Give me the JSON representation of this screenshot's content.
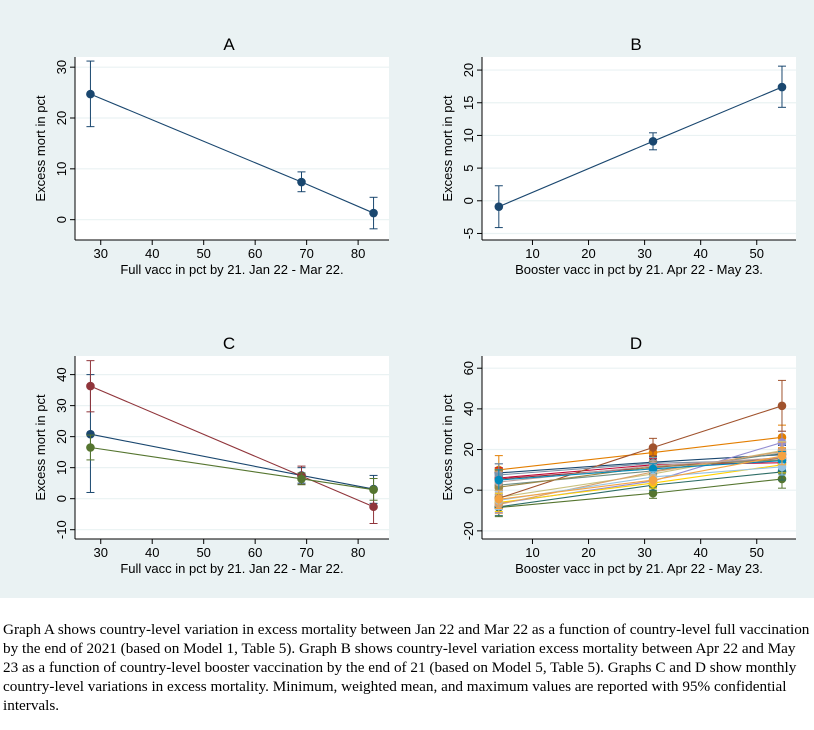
{
  "caption": "Graph A shows country-level variation in excess mortality between Jan 22 and Mar 22 as a function of country-level full vaccination by the end of 2021 (based on Model 1, Table 5). Graph B shows country-level variation excess mortality between Apr 22 and May 23 as a function of country-level booster vaccination by the end of 21 (based on Model 5, Table 5). Graphs C and D show monthly country-level variations in excess mortality. Minimum, weighted mean, and maximum values are reported with 95% confidential intervals.",
  "chart_data": [
    {
      "id": "A",
      "type": "line",
      "title": "A",
      "xlabel": "Full vacc in pct by 21. Jan 22 - Mar 22.",
      "ylabel": "Excess mort in pct",
      "xlim": [
        25,
        86
      ],
      "ylim": [
        -4,
        32
      ],
      "xticks": [
        30,
        40,
        50,
        60,
        70,
        80
      ],
      "yticks": [
        0,
        10,
        20,
        30
      ],
      "grid": true,
      "series": [
        {
          "color": "#1a476f",
          "points": [
            {
              "x": 28,
              "y": 24.7,
              "lo": 18.3,
              "hi": 31.2
            },
            {
              "x": 69,
              "y": 7.4,
              "lo": 5.5,
              "hi": 9.4
            },
            {
              "x": 83,
              "y": 1.3,
              "lo": -1.8,
              "hi": 4.4
            }
          ]
        }
      ]
    },
    {
      "id": "B",
      "type": "line",
      "title": "B",
      "xlabel": "Booster vacc in pct by 21. Apr 22 - May 23.",
      "ylabel": "Excess mort in pct",
      "xlim": [
        1,
        57
      ],
      "ylim": [
        -6,
        22
      ],
      "xticks": [
        10,
        20,
        30,
        40,
        50
      ],
      "yticks": [
        -5,
        0,
        5,
        10,
        15,
        20
      ],
      "grid": true,
      "series": [
        {
          "color": "#1a476f",
          "points": [
            {
              "x": 4,
              "y": -0.9,
              "lo": -4.1,
              "hi": 2.3
            },
            {
              "x": 31.5,
              "y": 9.1,
              "lo": 7.8,
              "hi": 10.4
            },
            {
              "x": 54.5,
              "y": 17.4,
              "lo": 14.3,
              "hi": 20.6
            }
          ]
        }
      ]
    },
    {
      "id": "C",
      "type": "line",
      "title": "C",
      "xlabel": "Full vacc in pct by 21. Jan 22 - Mar 22.",
      "ylabel": "Excess mort in pct",
      "xlim": [
        25,
        86
      ],
      "ylim": [
        -13,
        46
      ],
      "xticks": [
        30,
        40,
        50,
        60,
        70,
        80
      ],
      "yticks": [
        -10,
        0,
        10,
        20,
        30,
        40
      ],
      "grid": true,
      "series": [
        {
          "color": "#1a476f",
          "points": [
            {
              "x": 28,
              "y": 20.8,
              "lo": 2,
              "hi": 40
            },
            {
              "x": 69,
              "y": 7.5,
              "lo": 5,
              "hi": 10
            },
            {
              "x": 83,
              "y": 3.1,
              "lo": -1.5,
              "hi": 7.5
            }
          ]
        },
        {
          "color": "#90353b",
          "points": [
            {
              "x": 28,
              "y": 36.3,
              "lo": 28,
              "hi": 44.5
            },
            {
              "x": 69,
              "y": 7.3,
              "lo": 4.6,
              "hi": 10.5
            },
            {
              "x": 83,
              "y": -2.6,
              "lo": -8,
              "hi": 3
            }
          ]
        },
        {
          "color": "#55752f",
          "points": [
            {
              "x": 28,
              "y": 16.5,
              "lo": 12.5,
              "hi": 20.5
            },
            {
              "x": 69,
              "y": 6.4,
              "lo": 4.5,
              "hi": 8.3
            },
            {
              "x": 83,
              "y": 2.9,
              "lo": -0.5,
              "hi": 6.5
            }
          ]
        }
      ]
    },
    {
      "id": "D",
      "type": "line",
      "title": "D",
      "xlabel": "Booster vacc in pct by 21. Apr 22 - May 23.",
      "ylabel": "Excess mort in pct",
      "xlim": [
        1,
        57
      ],
      "ylim": [
        -24,
        66
      ],
      "xticks": [
        10,
        20,
        30,
        40,
        50
      ],
      "yticks": [
        -20,
        0,
        20,
        40,
        60
      ],
      "grid": true,
      "series": [
        {
          "color": "#1a476f",
          "points": [
            {
              "x": 4,
              "y": 8.5,
              "lo": 4,
              "hi": 13
            },
            {
              "x": 31.5,
              "y": 13.8,
              "lo": 11,
              "hi": 16.5
            },
            {
              "x": 54.5,
              "y": 17.5,
              "lo": 13,
              "hi": 22
            }
          ]
        },
        {
          "color": "#90353b",
          "points": [
            {
              "x": 4,
              "y": 5.5,
              "lo": 0,
              "hi": 11
            },
            {
              "x": 31.5,
              "y": 11.2,
              "lo": 8.5,
              "hi": 14
            },
            {
              "x": 54.5,
              "y": 15.8,
              "lo": 11,
              "hi": 20.5
            }
          ]
        },
        {
          "color": "#55752f",
          "points": [
            {
              "x": 4,
              "y": -8.5,
              "lo": -13,
              "hi": -4
            },
            {
              "x": 31.5,
              "y": -1.5,
              "lo": -4,
              "hi": 1
            },
            {
              "x": 54.5,
              "y": 5.5,
              "lo": 1,
              "hi": 10
            }
          ]
        },
        {
          "color": "#e37e00",
          "points": [
            {
              "x": 4,
              "y": 10,
              "lo": 3,
              "hi": 17
            },
            {
              "x": 31.5,
              "y": 18.5,
              "lo": 15.5,
              "hi": 21.5
            },
            {
              "x": 54.5,
              "y": 26,
              "lo": 20,
              "hi": 32
            }
          ]
        },
        {
          "color": "#6e8e84",
          "points": [
            {
              "x": 4,
              "y": 2.5,
              "lo": -2,
              "hi": 7
            },
            {
              "x": 31.5,
              "y": 9.5,
              "lo": 7,
              "hi": 12
            },
            {
              "x": 54.5,
              "y": 18.2,
              "lo": 14,
              "hi": 22.5
            }
          ]
        },
        {
          "color": "#c10534",
          "points": [
            {
              "x": 4,
              "y": 6,
              "lo": 1,
              "hi": 11
            },
            {
              "x": 31.5,
              "y": 12.5,
              "lo": 9.5,
              "hi": 15.5
            },
            {
              "x": 54.5,
              "y": 13.5,
              "lo": 9,
              "hi": 18
            }
          ]
        },
        {
          "color": "#938dd2",
          "points": [
            {
              "x": 4,
              "y": -6.5,
              "lo": -11,
              "hi": -2
            },
            {
              "x": 31.5,
              "y": 4.5,
              "lo": 2,
              "hi": 7
            },
            {
              "x": 54.5,
              "y": 23.5,
              "lo": 18,
              "hi": 29
            }
          ]
        },
        {
          "color": "#cac27e",
          "points": [
            {
              "x": 4,
              "y": -3.5,
              "lo": -8,
              "hi": 1
            },
            {
              "x": 31.5,
              "y": 8,
              "lo": 5,
              "hi": 11
            },
            {
              "x": 54.5,
              "y": 19.5,
              "lo": 15,
              "hi": 24
            }
          ]
        },
        {
          "color": "#a0522d",
          "points": [
            {
              "x": 4,
              "y": -4,
              "lo": -9,
              "hi": 1
            },
            {
              "x": 31.5,
              "y": 21,
              "lo": 17,
              "hi": 25.5
            },
            {
              "x": 54.5,
              "y": 41.5,
              "lo": 29,
              "hi": 54
            }
          ]
        },
        {
          "color": "#7b92a8",
          "points": [
            {
              "x": 4,
              "y": 7.5,
              "lo": 2,
              "hi": 13
            },
            {
              "x": 31.5,
              "y": 13.2,
              "lo": 10.5,
              "hi": 16
            },
            {
              "x": 54.5,
              "y": 14.8,
              "lo": 10.5,
              "hi": 19
            }
          ]
        },
        {
          "color": "#2d6d66",
          "points": [
            {
              "x": 4,
              "y": -8.2,
              "lo": -12.5,
              "hi": -4
            },
            {
              "x": 31.5,
              "y": 2.5,
              "lo": 0,
              "hi": 5
            },
            {
              "x": 54.5,
              "y": 9,
              "lo": 5,
              "hi": 13
            }
          ]
        },
        {
          "color": "#9c8847",
          "points": [
            {
              "x": 4,
              "y": 1.5,
              "lo": -3,
              "hi": 6
            },
            {
              "x": 31.5,
              "y": 11.5,
              "lo": 9,
              "hi": 14
            },
            {
              "x": 54.5,
              "y": 15,
              "lo": 11,
              "hi": 19
            }
          ]
        },
        {
          "color": "#ffd200",
          "points": [
            {
              "x": 4,
              "y": -6,
              "lo": -10.5,
              "hi": -1.5
            },
            {
              "x": 31.5,
              "y": 3.5,
              "lo": 1,
              "hi": 6
            },
            {
              "x": 54.5,
              "y": 12.5,
              "lo": 8.5,
              "hi": 16.5
            }
          ]
        },
        {
          "color": "#d9a26c",
          "points": [
            {
              "x": 4,
              "y": -7,
              "lo": -11.5,
              "hi": -2.5
            },
            {
              "x": 31.5,
              "y": 9,
              "lo": 6,
              "hi": 12
            },
            {
              "x": 54.5,
              "y": 19,
              "lo": 14.5,
              "hi": 23.5
            }
          ]
        },
        {
          "color": "#bfa19c",
          "points": [
            {
              "x": 4,
              "y": 4,
              "lo": -1,
              "hi": 9
            },
            {
              "x": 31.5,
              "y": 12,
              "lo": 9.5,
              "hi": 14.5
            },
            {
              "x": 54.5,
              "y": 16,
              "lo": 12,
              "hi": 20
            }
          ]
        },
        {
          "color": "#008bbc",
          "points": [
            {
              "x": 4,
              "y": 5,
              "lo": 0,
              "hi": 10
            },
            {
              "x": 31.5,
              "y": 10.5,
              "lo": 8,
              "hi": 13
            },
            {
              "x": 54.5,
              "y": 14.5,
              "lo": 10,
              "hi": 19
            }
          ]
        },
        {
          "color": "#97c3e2",
          "points": [
            {
              "x": 4,
              "y": -5,
              "lo": -9.5,
              "hi": -0.5
            },
            {
              "x": 31.5,
              "y": 6.5,
              "lo": 4,
              "hi": 9
            },
            {
              "x": 54.5,
              "y": 11.5,
              "lo": 7.5,
              "hi": 15.5
            }
          ]
        },
        {
          "color": "#f5a341",
          "points": [
            {
              "x": 4,
              "y": -4.5,
              "lo": -9,
              "hi": 0
            },
            {
              "x": 31.5,
              "y": 5,
              "lo": 2.5,
              "hi": 7.5
            },
            {
              "x": 54.5,
              "y": 16.8,
              "lo": 12.5,
              "hi": 21
            }
          ]
        }
      ]
    }
  ]
}
